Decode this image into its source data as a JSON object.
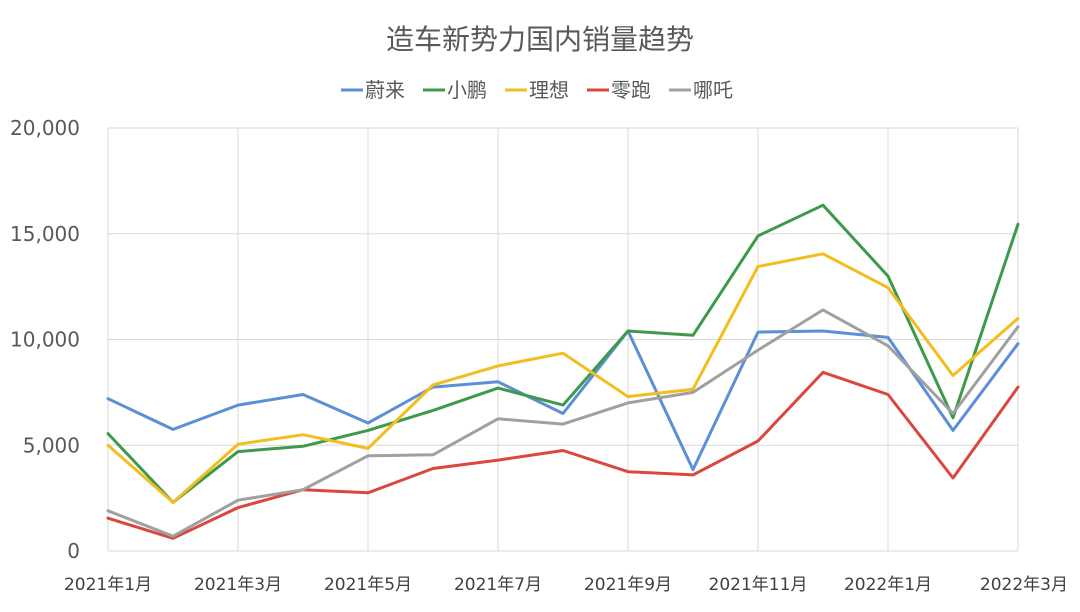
{
  "chart_data": {
    "type": "line",
    "title": "造车新势力国内销量趋势",
    "xlabel": "",
    "ylabel": "",
    "ylim": [
      0,
      20000
    ],
    "yticks": [
      0,
      5000,
      10000,
      15000,
      20000
    ],
    "ytick_labels": [
      "0",
      "5,000",
      "10,000",
      "15,000",
      "20,000"
    ],
    "legend_position": "top",
    "grid": true,
    "categories": [
      "2021年1月",
      "2021年2月",
      "2021年3月",
      "2021年4月",
      "2021年5月",
      "2021年6月",
      "2021年7月",
      "2021年8月",
      "2021年9月",
      "2021年10月",
      "2021年11月",
      "2021年12月",
      "2022年1月",
      "2022年2月",
      "2022年3月"
    ],
    "xtick_labels": [
      "2021年1月",
      "2021年3月",
      "2021年5月",
      "2021年7月",
      "2021年9月",
      "2021年11月",
      "2022年1月",
      "2022年3月"
    ],
    "xtick_indices": [
      0,
      2,
      4,
      6,
      8,
      10,
      12,
      14
    ],
    "series": [
      {
        "name": "蔚来",
        "color": "#5b8fd6",
        "values": [
          7200,
          5750,
          6900,
          7400,
          6050,
          7750,
          8000,
          6500,
          10400,
          3850,
          10350,
          10400,
          10100,
          5700,
          9800
        ]
      },
      {
        "name": "小鹏",
        "color": "#3e9a4a",
        "values": [
          5550,
          2300,
          4700,
          4950,
          5700,
          6650,
          7700,
          6900,
          10400,
          10200,
          14900,
          16350,
          13000,
          6300,
          15450
        ]
      },
      {
        "name": "理想",
        "color": "#f2be1f",
        "values": [
          5000,
          2300,
          5050,
          5500,
          4850,
          7850,
          8750,
          9350,
          7300,
          7650,
          13450,
          14050,
          12450,
          8300,
          11000
        ]
      },
      {
        "name": "零跑",
        "color": "#d9473f",
        "values": [
          1550,
          600,
          2050,
          2900,
          2750,
          3900,
          4300,
          4750,
          3750,
          3600,
          5200,
          8450,
          7400,
          3450,
          7750
        ]
      },
      {
        "name": "哪吒",
        "color": "#a0a0a0",
        "values": [
          1900,
          700,
          2400,
          2900,
          4500,
          4550,
          6250,
          6000,
          7000,
          7500,
          9500,
          11400,
          9700,
          6500,
          10600
        ]
      }
    ]
  }
}
